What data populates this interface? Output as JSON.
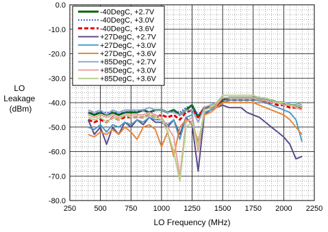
{
  "chart_data": {
    "type": "line",
    "title": "",
    "xlabel": "LO Frequency (MHz)",
    "ylabel_lines": [
      "LO",
      "Leakage",
      "(dBm)"
    ],
    "xlim": [
      250,
      2250
    ],
    "ylim": [
      -80,
      0
    ],
    "x_ticks": [
      "250",
      "500",
      "750",
      "1000",
      "1250",
      "1500",
      "1750",
      "2000",
      "2250"
    ],
    "y_ticks": [
      "0.0",
      "-10.0",
      "-20.0",
      "-30.0",
      "-40.0",
      "-50.0",
      "-60.0",
      "-70.0",
      "-80.0"
    ],
    "grid": true,
    "legend_position": "top-left",
    "x": [
      400,
      450,
      500,
      550,
      600,
      650,
      700,
      750,
      800,
      850,
      900,
      950,
      1000,
      1050,
      1100,
      1150,
      1200,
      1250,
      1300,
      1350,
      1400,
      1450,
      1500,
      1550,
      1600,
      1650,
      1700,
      1750,
      1800,
      1850,
      1900,
      1950,
      2000,
      2050,
      2100,
      2150
    ],
    "series": [
      {
        "name": "-40DegC, +2.7V",
        "color": "#006400",
        "dash": "solid",
        "width": 3,
        "values": [
          -44,
          -45,
          -44,
          -45,
          -44,
          -45,
          -44,
          -44,
          -44,
          -43,
          -44,
          -43,
          -43,
          -44,
          -43,
          -45,
          -43,
          -41,
          -46,
          -42,
          -42,
          -41,
          -39,
          -38,
          -38,
          -38,
          -38,
          -38,
          -38,
          -39,
          -39,
          -40,
          -40,
          -41,
          -41,
          -42
        ]
      },
      {
        "name": "-40DegC, +3.0V",
        "color": "#3b5bdb",
        "dash": "dotted",
        "width": 2,
        "values": [
          -44,
          -44,
          -44,
          -44,
          -44,
          -44,
          -44,
          -43,
          -44,
          -43,
          -44,
          -43,
          -43,
          -44,
          -43,
          -44,
          -42,
          -41,
          -45,
          -42,
          -41,
          -40,
          -39,
          -38,
          -38,
          -38,
          -38,
          -38,
          -38,
          -39,
          -39,
          -40,
          -40,
          -41,
          -41,
          -42
        ]
      },
      {
        "name": "-40DegC, +3.6V",
        "color": "#e00000",
        "dash": "dashed",
        "width": 3,
        "values": [
          -47,
          -48,
          -47,
          -48,
          -46,
          -47,
          -46,
          -46,
          -46,
          -46,
          -45,
          -46,
          -45,
          -46,
          -45,
          -47,
          -44,
          -43,
          -46,
          -42,
          -42,
          -41,
          -40,
          -39,
          -39,
          -39,
          -39,
          -39,
          -39,
          -40,
          -40,
          -41,
          -41,
          -42,
          -42,
          -42
        ]
      },
      {
        "name": "+27DegC, +2.7V",
        "color": "#5b4a8b",
        "dash": "solid",
        "width": 2,
        "values": [
          -47,
          -53,
          -50,
          -57,
          -50,
          -53,
          -48,
          -50,
          -47,
          -49,
          -46,
          -48,
          -48,
          -50,
          -47,
          -53,
          -46,
          -49,
          -68,
          -45,
          -43,
          -42,
          -41,
          -42,
          -42,
          -42,
          -44,
          -45,
          -46,
          -48,
          -50,
          -52,
          -54,
          -57,
          -63,
          -62
        ]
      },
      {
        "name": "+27DegC, +3.0V",
        "color": "#4b9bc8",
        "dash": "solid",
        "width": 2,
        "values": [
          -50,
          -51,
          -49,
          -52,
          -49,
          -50,
          -48,
          -49,
          -47,
          -48,
          -46,
          -47,
          -47,
          -49,
          -47,
          -55,
          -46,
          -45,
          -60,
          -44,
          -43,
          -42,
          -40,
          -39,
          -39,
          -39,
          -39,
          -39,
          -39,
          -40,
          -41,
          -42,
          -43,
          -44,
          -47,
          -56
        ]
      },
      {
        "name": "+27DegC, +3.6V",
        "color": "#e8873a",
        "dash": "solid",
        "width": 2,
        "values": [
          -53,
          -54,
          -52,
          -53,
          -51,
          -53,
          -50,
          -52,
          -55,
          -50,
          -49,
          -51,
          -58,
          -52,
          -62,
          -50,
          -47,
          -48,
          -56,
          -45,
          -44,
          -42,
          -40,
          -40,
          -40,
          -40,
          -40,
          -40,
          -41,
          -42,
          -43,
          -44,
          -45,
          -47,
          -50,
          -53
        ]
      },
      {
        "name": "+85DegC, +2.7V",
        "color": "#8fa8c8",
        "dash": "solid",
        "width": 2,
        "values": [
          -43,
          -44,
          -43,
          -45,
          -43,
          -44,
          -43,
          -43,
          -43,
          -43,
          -42,
          -43,
          -43,
          -44,
          -44,
          -45,
          -43,
          -43,
          -48,
          -42,
          -41,
          -40,
          -38,
          -38,
          -38,
          -38,
          -38,
          -38,
          -38,
          -39,
          -39,
          -40,
          -40,
          -40,
          -40,
          -41
        ]
      },
      {
        "name": "+85DegC, +3.0V",
        "color": "#e8a0a0",
        "dash": "solid",
        "width": 2,
        "values": [
          -45,
          -46,
          -45,
          -46,
          -45,
          -46,
          -45,
          -45,
          -45,
          -45,
          -44,
          -45,
          -46,
          -50,
          -54,
          -70,
          -48,
          -46,
          -60,
          -43,
          -42,
          -41,
          -38,
          -38,
          -38,
          -38,
          -38,
          -38,
          -39,
          -39,
          -40,
          -40,
          -41,
          -41,
          -42,
          -43
        ]
      },
      {
        "name": "+85DegC, +3.6V",
        "color": "#b5cf8a",
        "dash": "solid",
        "width": 2,
        "values": [
          -46,
          -47,
          -46,
          -48,
          -46,
          -47,
          -45,
          -46,
          -46,
          -46,
          -45,
          -46,
          -47,
          -52,
          -60,
          -72,
          -50,
          -48,
          -58,
          -43,
          -42,
          -40,
          -37,
          -37,
          -37,
          -37,
          -37,
          -37,
          -38,
          -38,
          -39,
          -40,
          -40,
          -41,
          -41,
          -42
        ]
      }
    ]
  }
}
